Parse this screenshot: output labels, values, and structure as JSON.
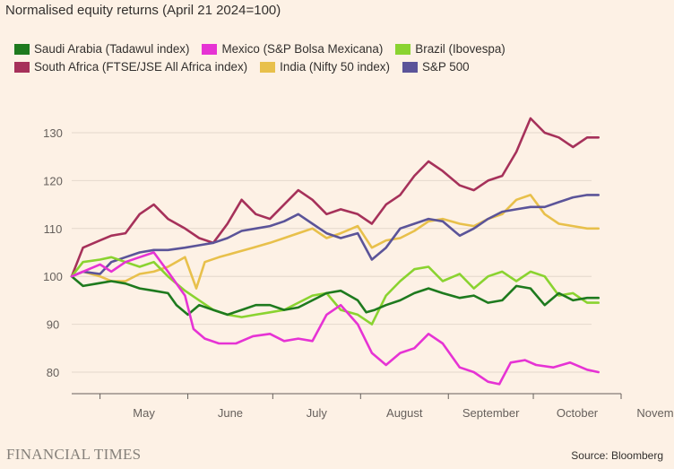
{
  "title": "Normalised equity returns (April 21 2024=100)",
  "source": "Source: Bloomberg",
  "publisher": "FINANCIAL TIMES",
  "chart_data": {
    "type": "line",
    "title": "Normalised equity returns (April 21 2024=100)",
    "xlabel": "",
    "ylabel": "",
    "ylim": [
      75,
      136
    ],
    "yticks": [
      80,
      90,
      100,
      110,
      120,
      130
    ],
    "xticks": [
      "May",
      "June",
      "July",
      "August",
      "September",
      "October",
      "November"
    ],
    "x_range": [
      "2024-04-21",
      "2024-11-05"
    ],
    "grid": "horizontal",
    "legend_position": "top",
    "series": [
      {
        "name": "Saudi Arabia (Tadawul index)",
        "color": "#1e7a1e",
        "points": [
          [
            "2024-04-21",
            100
          ],
          [
            "2024-04-25",
            98
          ],
          [
            "2024-04-30",
            98.5
          ],
          [
            "2024-05-05",
            99
          ],
          [
            "2024-05-10",
            98.5
          ],
          [
            "2024-05-15",
            97.5
          ],
          [
            "2024-05-20",
            97
          ],
          [
            "2024-05-25",
            96.5
          ],
          [
            "2024-05-28",
            94
          ],
          [
            "2024-06-01",
            92
          ],
          [
            "2024-06-05",
            94
          ],
          [
            "2024-06-10",
            93
          ],
          [
            "2024-06-15",
            92
          ],
          [
            "2024-06-20",
            93
          ],
          [
            "2024-06-25",
            94
          ],
          [
            "2024-06-30",
            94
          ],
          [
            "2024-07-05",
            93
          ],
          [
            "2024-07-10",
            93.5
          ],
          [
            "2024-07-15",
            95
          ],
          [
            "2024-07-20",
            96.5
          ],
          [
            "2024-07-25",
            97
          ],
          [
            "2024-07-31",
            95
          ],
          [
            "2024-08-03",
            92.5
          ],
          [
            "2024-08-06",
            93
          ],
          [
            "2024-08-10",
            94
          ],
          [
            "2024-08-15",
            95
          ],
          [
            "2024-08-20",
            96.5
          ],
          [
            "2024-08-25",
            97.5
          ],
          [
            "2024-08-30",
            96.5
          ],
          [
            "2024-09-05",
            95.5
          ],
          [
            "2024-09-10",
            96
          ],
          [
            "2024-09-15",
            94.5
          ],
          [
            "2024-09-20",
            95
          ],
          [
            "2024-09-25",
            98
          ],
          [
            "2024-09-30",
            97.5
          ],
          [
            "2024-10-05",
            94
          ],
          [
            "2024-10-10",
            96.5
          ],
          [
            "2024-10-15",
            95
          ],
          [
            "2024-10-20",
            95.5
          ],
          [
            "2024-10-24",
            95.5
          ]
        ]
      },
      {
        "name": "Mexico (S&P Bolsa Mexicana)",
        "color": "#e633d4",
        "points": [
          [
            "2024-04-21",
            100
          ],
          [
            "2024-04-25",
            101
          ],
          [
            "2024-05-01",
            102.5
          ],
          [
            "2024-05-05",
            101
          ],
          [
            "2024-05-10",
            103
          ],
          [
            "2024-05-15",
            104
          ],
          [
            "2024-05-20",
            105
          ],
          [
            "2024-05-25",
            101
          ],
          [
            "2024-05-31",
            96
          ],
          [
            "2024-06-03",
            89
          ],
          [
            "2024-06-07",
            87
          ],
          [
            "2024-06-12",
            86
          ],
          [
            "2024-06-18",
            86
          ],
          [
            "2024-06-24",
            87.5
          ],
          [
            "2024-06-30",
            88
          ],
          [
            "2024-07-05",
            86.5
          ],
          [
            "2024-07-10",
            87
          ],
          [
            "2024-07-15",
            86.5
          ],
          [
            "2024-07-20",
            92
          ],
          [
            "2024-07-25",
            94
          ],
          [
            "2024-07-31",
            90
          ],
          [
            "2024-08-05",
            84
          ],
          [
            "2024-08-10",
            81.5
          ],
          [
            "2024-08-15",
            84
          ],
          [
            "2024-08-20",
            85
          ],
          [
            "2024-08-25",
            88
          ],
          [
            "2024-08-30",
            86
          ],
          [
            "2024-09-05",
            81
          ],
          [
            "2024-09-10",
            80
          ],
          [
            "2024-09-15",
            78
          ],
          [
            "2024-09-19",
            77.5
          ],
          [
            "2024-09-23",
            82
          ],
          [
            "2024-09-28",
            82.5
          ],
          [
            "2024-10-02",
            81.5
          ],
          [
            "2024-10-08",
            81
          ],
          [
            "2024-10-14",
            82
          ],
          [
            "2024-10-20",
            80.5
          ],
          [
            "2024-10-24",
            80
          ]
        ]
      },
      {
        "name": "Brazil (Ibovespa)",
        "color": "#8ad330",
        "points": [
          [
            "2024-04-21",
            100
          ],
          [
            "2024-04-25",
            103
          ],
          [
            "2024-05-01",
            103.5
          ],
          [
            "2024-05-05",
            104
          ],
          [
            "2024-05-10",
            103
          ],
          [
            "2024-05-15",
            102
          ],
          [
            "2024-05-20",
            103
          ],
          [
            "2024-05-25",
            100
          ],
          [
            "2024-05-31",
            97
          ],
          [
            "2024-06-05",
            95
          ],
          [
            "2024-06-10",
            93
          ],
          [
            "2024-06-15",
            92
          ],
          [
            "2024-06-20",
            91.5
          ],
          [
            "2024-06-25",
            92
          ],
          [
            "2024-06-30",
            92.5
          ],
          [
            "2024-07-05",
            93
          ],
          [
            "2024-07-10",
            94.5
          ],
          [
            "2024-07-15",
            96
          ],
          [
            "2024-07-20",
            96.5
          ],
          [
            "2024-07-25",
            93
          ],
          [
            "2024-07-31",
            92
          ],
          [
            "2024-08-05",
            90
          ],
          [
            "2024-08-10",
            96
          ],
          [
            "2024-08-15",
            99
          ],
          [
            "2024-08-20",
            101.5
          ],
          [
            "2024-08-25",
            102
          ],
          [
            "2024-08-30",
            99
          ],
          [
            "2024-09-05",
            100.5
          ],
          [
            "2024-09-10",
            97.5
          ],
          [
            "2024-09-15",
            100
          ],
          [
            "2024-09-20",
            101
          ],
          [
            "2024-09-25",
            99
          ],
          [
            "2024-09-30",
            101
          ],
          [
            "2024-10-05",
            100
          ],
          [
            "2024-10-10",
            96
          ],
          [
            "2024-10-15",
            96.5
          ],
          [
            "2024-10-20",
            94.5
          ],
          [
            "2024-10-24",
            94.5
          ]
        ]
      },
      {
        "name": "South Africa (FTSE/JSE All Africa index)",
        "color": "#a6315a",
        "points": [
          [
            "2024-04-21",
            100
          ],
          [
            "2024-04-25",
            106
          ],
          [
            "2024-05-01",
            107.5
          ],
          [
            "2024-05-05",
            108.5
          ],
          [
            "2024-05-10",
            109
          ],
          [
            "2024-05-15",
            113
          ],
          [
            "2024-05-20",
            115
          ],
          [
            "2024-05-25",
            112
          ],
          [
            "2024-05-31",
            110
          ],
          [
            "2024-06-05",
            108
          ],
          [
            "2024-06-10",
            107
          ],
          [
            "2024-06-15",
            111
          ],
          [
            "2024-06-20",
            116
          ],
          [
            "2024-06-25",
            113
          ],
          [
            "2024-06-30",
            112
          ],
          [
            "2024-07-05",
            115
          ],
          [
            "2024-07-10",
            118
          ],
          [
            "2024-07-15",
            116
          ],
          [
            "2024-07-20",
            113
          ],
          [
            "2024-07-25",
            114
          ],
          [
            "2024-07-31",
            113
          ],
          [
            "2024-08-05",
            111
          ],
          [
            "2024-08-10",
            115
          ],
          [
            "2024-08-15",
            117
          ],
          [
            "2024-08-20",
            121
          ],
          [
            "2024-08-25",
            124
          ],
          [
            "2024-08-30",
            122
          ],
          [
            "2024-09-05",
            119
          ],
          [
            "2024-09-10",
            118
          ],
          [
            "2024-09-15",
            120
          ],
          [
            "2024-09-20",
            121
          ],
          [
            "2024-09-25",
            126
          ],
          [
            "2024-09-30",
            133
          ],
          [
            "2024-10-05",
            130
          ],
          [
            "2024-10-10",
            129
          ],
          [
            "2024-10-15",
            127
          ],
          [
            "2024-10-20",
            129
          ],
          [
            "2024-10-24",
            129
          ]
        ]
      },
      {
        "name": "India (Nifty 50 index)",
        "color": "#e8c04b",
        "points": [
          [
            "2024-04-21",
            100
          ],
          [
            "2024-04-25",
            101
          ],
          [
            "2024-05-01",
            100
          ],
          [
            "2024-05-05",
            99
          ],
          [
            "2024-05-10",
            99
          ],
          [
            "2024-05-15",
            100.5
          ],
          [
            "2024-05-20",
            101
          ],
          [
            "2024-05-25",
            102
          ],
          [
            "2024-05-31",
            104
          ],
          [
            "2024-06-04",
            97.5
          ],
          [
            "2024-06-07",
            103
          ],
          [
            "2024-06-12",
            104
          ],
          [
            "2024-06-18",
            105
          ],
          [
            "2024-06-24",
            106
          ],
          [
            "2024-06-30",
            107
          ],
          [
            "2024-07-05",
            108
          ],
          [
            "2024-07-10",
            109
          ],
          [
            "2024-07-15",
            110
          ],
          [
            "2024-07-20",
            108
          ],
          [
            "2024-07-25",
            109
          ],
          [
            "2024-07-31",
            110.5
          ],
          [
            "2024-08-05",
            106
          ],
          [
            "2024-08-10",
            107.5
          ],
          [
            "2024-08-15",
            108
          ],
          [
            "2024-08-20",
            109.5
          ],
          [
            "2024-08-25",
            111.5
          ],
          [
            "2024-08-30",
            112
          ],
          [
            "2024-09-05",
            111
          ],
          [
            "2024-09-10",
            110.5
          ],
          [
            "2024-09-15",
            112
          ],
          [
            "2024-09-20",
            113
          ],
          [
            "2024-09-25",
            116
          ],
          [
            "2024-09-30",
            117
          ],
          [
            "2024-10-05",
            113
          ],
          [
            "2024-10-10",
            111
          ],
          [
            "2024-10-15",
            110.5
          ],
          [
            "2024-10-20",
            110
          ],
          [
            "2024-10-24",
            110
          ]
        ]
      },
      {
        "name": "S&P 500",
        "color": "#5b5499",
        "points": [
          [
            "2024-04-21",
            100
          ],
          [
            "2024-04-25",
            101
          ],
          [
            "2024-05-01",
            100.5
          ],
          [
            "2024-05-05",
            103
          ],
          [
            "2024-05-10",
            104
          ],
          [
            "2024-05-15",
            105
          ],
          [
            "2024-05-20",
            105.5
          ],
          [
            "2024-05-25",
            105.5
          ],
          [
            "2024-05-31",
            106
          ],
          [
            "2024-06-05",
            106.5
          ],
          [
            "2024-06-10",
            107
          ],
          [
            "2024-06-15",
            108
          ],
          [
            "2024-06-20",
            109.5
          ],
          [
            "2024-06-25",
            110
          ],
          [
            "2024-06-30",
            110.5
          ],
          [
            "2024-07-05",
            111.5
          ],
          [
            "2024-07-10",
            113
          ],
          [
            "2024-07-15",
            111
          ],
          [
            "2024-07-20",
            109
          ],
          [
            "2024-07-25",
            108
          ],
          [
            "2024-07-31",
            109
          ],
          [
            "2024-08-05",
            103.5
          ],
          [
            "2024-08-10",
            106
          ],
          [
            "2024-08-15",
            110
          ],
          [
            "2024-08-20",
            111
          ],
          [
            "2024-08-25",
            112
          ],
          [
            "2024-08-30",
            111.5
          ],
          [
            "2024-09-05",
            108.5
          ],
          [
            "2024-09-10",
            110
          ],
          [
            "2024-09-15",
            112
          ],
          [
            "2024-09-20",
            113.5
          ],
          [
            "2024-09-25",
            114
          ],
          [
            "2024-09-30",
            114.5
          ],
          [
            "2024-10-05",
            114.5
          ],
          [
            "2024-10-10",
            115.5
          ],
          [
            "2024-10-15",
            116.5
          ],
          [
            "2024-10-20",
            117
          ],
          [
            "2024-10-24",
            117
          ]
        ]
      }
    ]
  }
}
